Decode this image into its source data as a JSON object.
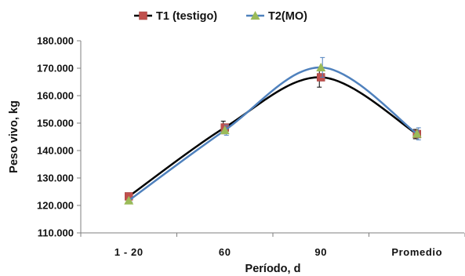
{
  "chart_data": {
    "type": "line",
    "title": "",
    "xlabel": "Período, d",
    "ylabel": "Peso vivo, kg",
    "categories": [
      "1 - 20",
      "60",
      "90",
      "Promedio"
    ],
    "ylim": [
      110,
      180
    ],
    "yticks": [
      110,
      120,
      130,
      140,
      150,
      160,
      170,
      180
    ],
    "ytick_labels": [
      "110.000",
      "120.000",
      "130.000",
      "140.000",
      "150.000",
      "160.000",
      "170.000",
      "180.000"
    ],
    "grid": false,
    "legend_position": "top",
    "smooth": true,
    "series": [
      {
        "name": "T1 (testigo)",
        "values": [
          123.3,
          148.4,
          166.7,
          146.0
        ],
        "error": [
          0.8,
          2.3,
          3.6,
          1.7
        ],
        "line_color": "#000000",
        "marker": "square",
        "marker_color": "#c0504d"
      },
      {
        "name": "T2(MO)",
        "values": [
          121.8,
          147.4,
          170.3,
          146.1
        ],
        "error": [
          0.6,
          1.8,
          3.6,
          2.2
        ],
        "line_color": "#4f81bd",
        "marker": "triangle",
        "marker_color": "#9bbb59"
      }
    ]
  }
}
